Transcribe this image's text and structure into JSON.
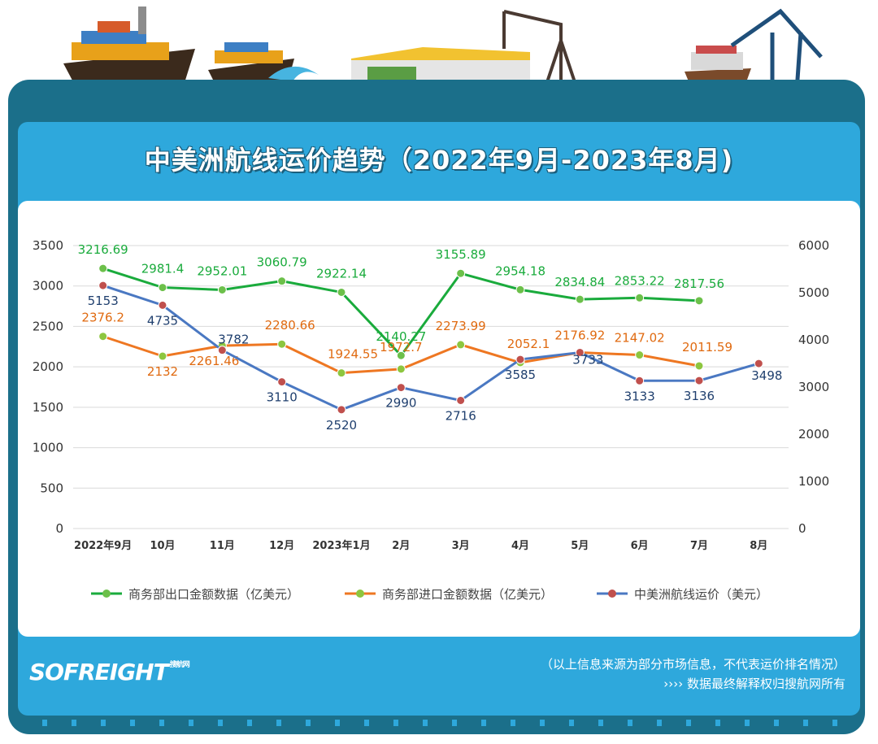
{
  "header": {
    "title": "中美洲航线运价趋势（2022年9月-2023年8月)"
  },
  "footer": {
    "brand": "SOFREIGHT",
    "brand_sub": "搜航网",
    "note_line1": "（以上信息来源为部分市场信息，不代表运价排名情况）",
    "note_line2": "›››› 数据最终解释权归搜航网所有"
  },
  "chart_data": {
    "type": "line",
    "categories": [
      "2022年9月",
      "10月",
      "11月",
      "12月",
      "2023年1月",
      "2月",
      "3月",
      "4月",
      "5月",
      "6月",
      "7月",
      "8月"
    ],
    "y_left": {
      "min": 0,
      "max": 3500,
      "ticks": [
        0,
        500,
        1000,
        1500,
        2000,
        2500,
        3000,
        3500
      ]
    },
    "y_right": {
      "min": 0,
      "max": 6000,
      "ticks": [
        0,
        1000,
        2000,
        3000,
        4000,
        5000,
        6000
      ]
    },
    "series": [
      {
        "name": "商务部出口金额数据（亿美元）",
        "axis": "left",
        "color": "#1aab3c",
        "marker": "#6cc04a",
        "label_color": "#1aab3c",
        "values": [
          3216.69,
          2981.4,
          2952.01,
          3060.79,
          2922.14,
          2140.27,
          3155.89,
          2954.18,
          2834.84,
          2853.22,
          2817.56,
          null
        ],
        "labels": [
          "3216.69",
          "2981.4",
          "2952.01",
          "3060.79",
          "2922.14",
          "2140.27",
          "3155.89",
          "2954.18",
          "2834.84",
          "2853.22",
          "2817.56",
          ""
        ]
      },
      {
        "name": "商务部进口金额数据（亿美元）",
        "axis": "left",
        "color": "#ee7722",
        "marker": "#8dc63f",
        "label_color": "#e06a10",
        "values": [
          2376.2,
          2132,
          2261.46,
          2280.66,
          1924.55,
          1972.7,
          2273.99,
          2052.1,
          2176.92,
          2147.02,
          2011.59,
          null
        ],
        "labels": [
          "2376.2",
          "2132",
          "2261.46",
          "2280.66",
          "1924.55",
          "1972.7",
          "2273.99",
          "2052.1",
          "2176.92",
          "2147.02",
          "2011.59",
          ""
        ]
      },
      {
        "name": "中美洲航线运价（美元）",
        "axis": "right",
        "color": "#4a78c2",
        "marker": "#c0504d",
        "label_color": "#1f3f6e",
        "values": [
          5153,
          4735,
          3782,
          3110,
          2520,
          2990,
          2716,
          3585,
          3733,
          3133,
          3136,
          3498
        ],
        "labels": [
          "5153",
          "4735",
          "3782",
          "3110",
          "2520",
          "2990",
          "2716",
          "3585",
          "3733",
          "3133",
          "3136",
          "3498"
        ]
      }
    ],
    "legend": "bottom"
  }
}
